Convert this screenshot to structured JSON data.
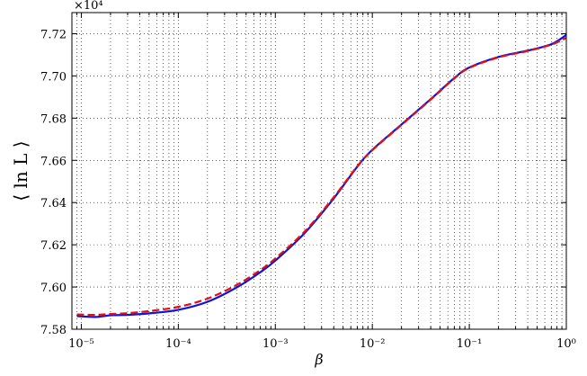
{
  "chart_data": {
    "type": "line",
    "title": "",
    "xlabel": "β",
    "ylabel": "⟨ ln L ⟩",
    "x_scale": "log",
    "xlim": [
      8e-06,
      1
    ],
    "ylim": [
      75800,
      77300
    ],
    "y_multiplier_label": "×10⁴",
    "grid": true,
    "x_ticks": [
      {
        "value": 1e-05,
        "label": "10⁻⁵"
      },
      {
        "value": 0.0001,
        "label": "10⁻⁴"
      },
      {
        "value": 0.001,
        "label": "10⁻³"
      },
      {
        "value": 0.01,
        "label": "10⁻²"
      },
      {
        "value": 0.1,
        "label": "10⁻¹"
      },
      {
        "value": 1,
        "label": "10⁰"
      }
    ],
    "y_ticks": [
      {
        "value": 75800,
        "label": "7.58"
      },
      {
        "value": 76000,
        "label": "7.60"
      },
      {
        "value": 76200,
        "label": "7.62"
      },
      {
        "value": 76400,
        "label": "7.64"
      },
      {
        "value": 76600,
        "label": "7.66"
      },
      {
        "value": 76800,
        "label": "7.68"
      },
      {
        "value": 77000,
        "label": "7.70"
      },
      {
        "value": 77200,
        "label": "7.72"
      }
    ],
    "series": [
      {
        "color": "#1010e0",
        "style": "solid",
        "x": [
          9e-06,
          1.4e-05,
          2e-05,
          3e-05,
          5e-05,
          0.0001,
          0.0002,
          0.0004,
          0.0007,
          0.001,
          0.002,
          0.004,
          0.007,
          0.01,
          0.02,
          0.04,
          0.07,
          0.1,
          0.2,
          0.4,
          0.7,
          1
        ],
        "values": [
          75862,
          75858,
          75866,
          75868,
          75875,
          75892,
          75930,
          75998,
          76070,
          76125,
          76255,
          76420,
          76570,
          76650,
          76770,
          76890,
          76990,
          77040,
          77090,
          77120,
          77150,
          77194
        ]
      },
      {
        "color": "#e01010",
        "style": "dashed",
        "x": [
          9e-06,
          1.4e-05,
          2e-05,
          3e-05,
          5e-05,
          0.0001,
          0.0002,
          0.0004,
          0.0007,
          0.001,
          0.002,
          0.004,
          0.007,
          0.01,
          0.02,
          0.04,
          0.07,
          0.1,
          0.2,
          0.4,
          0.7,
          1
        ],
        "values": [
          75870,
          75868,
          75872,
          75876,
          75886,
          75906,
          75945,
          76010,
          76080,
          76135,
          76262,
          76425,
          76572,
          76648,
          76768,
          76888,
          76988,
          77038,
          77088,
          77118,
          77148,
          77180
        ]
      }
    ]
  }
}
